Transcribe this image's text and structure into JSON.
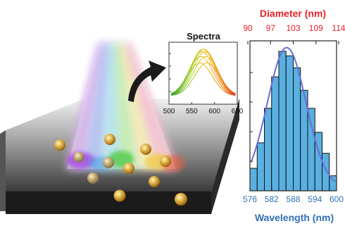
{
  "spectra": {
    "title": "Spectra",
    "x_ticks": [
      "500",
      "550",
      "600",
      "650"
    ],
    "x_range": [
      500,
      650
    ],
    "curve_colors": [
      "#7cc32b",
      "#9fcf2a",
      "#c9cf23",
      "#e7c21c",
      "#f0a91b",
      "#ee8c1a",
      "#e86a1a",
      "#e2471a"
    ]
  },
  "histogram": {
    "top_axis_label": "Diameter (nm)",
    "top_axis_ticks": [
      "90",
      "97",
      "103",
      "109",
      "114"
    ],
    "bottom_axis_label": "Wavelength (nm)",
    "bottom_axis_ticks": [
      "576",
      "582",
      "588",
      "594",
      "600"
    ],
    "top_color": "#e8212a",
    "bottom_color": "#2f6fb5",
    "bar_fill": "#5ab0e0",
    "fit_color": "#6b6bd9"
  },
  "chart_data": {
    "type": "bar",
    "x": [
      577,
      579,
      581,
      583,
      585,
      587,
      589,
      591,
      593,
      595,
      597,
      599
    ],
    "values": [
      1.5,
      3.2,
      5.5,
      7.6,
      9.3,
      9.0,
      8.2,
      6.7,
      5.5,
      3.9,
      2.5,
      1.0
    ],
    "xlabel": "Wavelength (nm)",
    "xlim": [
      576,
      600
    ],
    "secondary_xlabel": "Diameter (nm)",
    "legend": "none"
  }
}
